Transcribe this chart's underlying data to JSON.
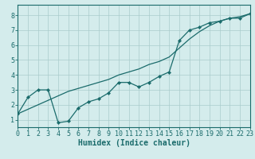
{
  "xlabel": "Humidex (Indice chaleur)",
  "background_color": "#d4ecec",
  "line_color": "#1a6b6b",
  "grid_color": "#aacccc",
  "line1_x": [
    0,
    1,
    2,
    3,
    4,
    5,
    6,
    7,
    8,
    9,
    10,
    11,
    12,
    13,
    14,
    15,
    16,
    17,
    18,
    19,
    20,
    21,
    22,
    23
  ],
  "line1_y": [
    1.4,
    2.5,
    3.0,
    3.0,
    0.8,
    0.9,
    1.8,
    2.2,
    2.4,
    2.8,
    3.5,
    3.5,
    3.2,
    3.5,
    3.9,
    4.2,
    6.3,
    7.0,
    7.2,
    7.5,
    7.6,
    7.8,
    7.8,
    8.1
  ],
  "line2_x": [
    0,
    1,
    2,
    3,
    4,
    5,
    6,
    7,
    8,
    9,
    10,
    11,
    12,
    13,
    14,
    15,
    16,
    17,
    18,
    19,
    20,
    21,
    22,
    23
  ],
  "line2_y": [
    1.4,
    1.7,
    2.0,
    2.3,
    2.6,
    2.9,
    3.1,
    3.3,
    3.5,
    3.7,
    4.0,
    4.2,
    4.4,
    4.7,
    4.9,
    5.2,
    5.8,
    6.4,
    6.9,
    7.3,
    7.6,
    7.8,
    7.9,
    8.1
  ],
  "xlim": [
    0,
    23
  ],
  "ylim": [
    0.5,
    8.7
  ],
  "xticks": [
    0,
    1,
    2,
    3,
    4,
    5,
    6,
    7,
    8,
    9,
    10,
    11,
    12,
    13,
    14,
    15,
    16,
    17,
    18,
    19,
    20,
    21,
    22,
    23
  ],
  "yticks": [
    1,
    2,
    3,
    4,
    5,
    6,
    7,
    8
  ],
  "xlabel_fontsize": 7,
  "tick_fontsize": 6,
  "linewidth": 0.9,
  "markersize": 2.2
}
